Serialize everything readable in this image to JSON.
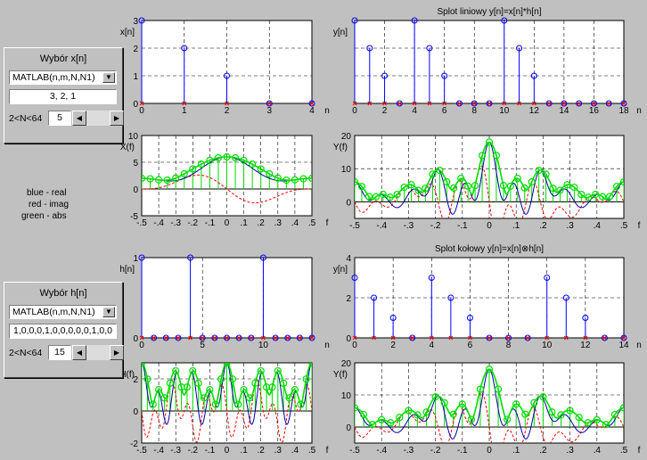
{
  "panels": {
    "x": {
      "title": "Wybór x[n]",
      "source": "MATLAB(n,m,N,N1)",
      "values": "3, 2, 1",
      "n_label": "2<N<64",
      "n_value": "5"
    },
    "h": {
      "title": "Wybór h[n]",
      "source": "MATLAB(n,m,N,N1)",
      "values": "1,0,0,0,1,0,0,0,0,0,1,0,0",
      "n_label": "2<N<64",
      "n_value": "15"
    }
  },
  "legend": {
    "line1": "blue - real",
    "line2": "red - imag",
    "line3": "green - abs"
  },
  "icons": {
    "dropdown": "dropdown-arrow-icon",
    "left": "arrow-left-icon",
    "right": "arrow-right-icon"
  },
  "colors": {
    "background": "#c0c0c0",
    "plot": "#ffffff",
    "stem": "#0000ff",
    "marker": "#ff0000",
    "real": "#0000a0",
    "imag": "#ff0000",
    "abs": "#00dd00"
  },
  "chart_data": [
    {
      "id": "xn",
      "type": "stem",
      "title": "",
      "ylabel": "x[n]",
      "xlabel": "n",
      "x": [
        0,
        1,
        2,
        3,
        4
      ],
      "values": [
        3,
        2,
        1,
        0,
        0
      ],
      "xlim": [
        0,
        4
      ],
      "ylim": [
        0,
        3
      ],
      "xticks": [
        0,
        1,
        2,
        3,
        4
      ],
      "yticks": [
        0,
        1,
        2,
        3
      ],
      "grid": true
    },
    {
      "id": "lin",
      "type": "stem",
      "title": "Splot liniowy y[n]=x[n]*h[n]",
      "ylabel": "y[n]",
      "xlabel": "n",
      "x": [
        0,
        1,
        2,
        3,
        4,
        5,
        6,
        7,
        8,
        9,
        10,
        11,
        12,
        13,
        14,
        15,
        16,
        17,
        18
      ],
      "values": [
        3,
        2,
        1,
        0,
        3,
        2,
        1,
        0,
        0,
        0,
        3,
        2,
        1,
        0,
        0,
        0,
        0,
        0,
        0
      ],
      "xlim": [
        0,
        18
      ],
      "ylim": [
        0,
        3
      ],
      "xticks": [
        0,
        2,
        4,
        6,
        8,
        10,
        12,
        14,
        16,
        18
      ],
      "yticks": [],
      "grid": true
    },
    {
      "id": "Xf",
      "type": "line",
      "title": "",
      "ylabel": "X(f)",
      "xlabel": "f",
      "x_range": [
        -0.5,
        0.5
      ],
      "xlim": [
        -0.5,
        0.5
      ],
      "ylim": [
        -5,
        10
      ],
      "xticks": [
        -0.5,
        -0.4,
        -0.3,
        -0.2,
        -0.1,
        0,
        0.1,
        0.2,
        0.3,
        0.4,
        0.5
      ],
      "yticks": [
        -5,
        0,
        5,
        10
      ],
      "x_seq": [
        3,
        2,
        1,
        0,
        0
      ],
      "freq_bins": 20,
      "series": [],
      "grid": true
    },
    {
      "id": "Yf1",
      "type": "line",
      "title": "",
      "ylabel": "Y(f)",
      "xlabel": "f",
      "x_range": [
        -0.5,
        0.5
      ],
      "xlim": [
        -0.5,
        0.5
      ],
      "ylim": [
        -5,
        20
      ],
      "xticks": [
        -0.5,
        -0.4,
        -0.3,
        -0.2,
        -0.1,
        0,
        0.1,
        0.2,
        0.3,
        0.4,
        0.5
      ],
      "yticks": [
        0,
        10,
        20
      ],
      "x_seq": [
        3,
        2,
        1,
        0,
        3,
        2,
        1,
        0,
        0,
        0,
        3,
        2,
        1,
        0,
        0,
        0,
        0,
        0,
        0
      ],
      "freq_bins": 38,
      "series": [],
      "grid": true
    },
    {
      "id": "hn",
      "type": "stem",
      "title": "",
      "ylabel": "h[n]",
      "xlabel": "n",
      "x": [
        0,
        1,
        2,
        3,
        4,
        5,
        6,
        7,
        8,
        9,
        10,
        11,
        12,
        13,
        14
      ],
      "values": [
        1,
        0,
        0,
        0,
        1,
        0,
        0,
        0,
        0,
        0,
        1,
        0,
        0,
        0,
        0
      ],
      "xlim": [
        0,
        14
      ],
      "ylim": [
        0,
        1
      ],
      "xticks": [
        0,
        5,
        10
      ],
      "yticks": [
        0,
        1
      ],
      "grid": true
    },
    {
      "id": "circ",
      "type": "stem",
      "title": "Splot kołowy y[n]=x[n]⊗h[n]",
      "ylabel": "y[n]",
      "xlabel": "n",
      "x": [
        0,
        1,
        2,
        3,
        4,
        5,
        6,
        7,
        8,
        9,
        10,
        11,
        12,
        13,
        14
      ],
      "values": [
        3,
        2,
        1,
        0,
        3,
        2,
        1,
        0,
        0,
        0,
        3,
        2,
        1,
        0,
        0
      ],
      "xlim": [
        0,
        14
      ],
      "ylim": [
        0,
        4
      ],
      "xticks": [
        0,
        2,
        4,
        6,
        8,
        10,
        12,
        14
      ],
      "yticks": [
        0,
        2,
        4
      ],
      "grid": true
    },
    {
      "id": "Hf",
      "type": "line",
      "title": "",
      "ylabel": "H(f)",
      "xlabel": "f",
      "x_range": [
        -0.5,
        0.5
      ],
      "xlim": [
        -0.5,
        0.5
      ],
      "ylim": [
        -2,
        3
      ],
      "xticks": [
        -0.5,
        -0.4,
        -0.3,
        -0.2,
        -0.1,
        0,
        0.1,
        0.2,
        0.3,
        0.4,
        0.5
      ],
      "yticks": [
        -2,
        0,
        2
      ],
      "x_seq": [
        1,
        0,
        0,
        0,
        1,
        0,
        0,
        0,
        0,
        0,
        1,
        0,
        0,
        0,
        0
      ],
      "freq_bins": 30,
      "series": [],
      "grid": true
    },
    {
      "id": "Yf2",
      "type": "line",
      "title": "",
      "ylabel": "Y(f)",
      "xlabel": "f",
      "x_range": [
        -0.5,
        0.5
      ],
      "xlim": [
        -0.5,
        0.5
      ],
      "ylim": [
        -5,
        20
      ],
      "xticks": [
        -0.5,
        -0.4,
        -0.3,
        -0.2,
        -0.1,
        0,
        0.1,
        0.2,
        0.3,
        0.4,
        0.5
      ],
      "yticks": [
        0,
        10,
        20
      ],
      "x_seq": [
        3,
        2,
        1,
        0,
        3,
        2,
        1,
        0,
        0,
        0,
        3,
        2,
        1,
        0,
        0
      ],
      "freq_bins": 30,
      "series": [],
      "grid": true
    }
  ]
}
